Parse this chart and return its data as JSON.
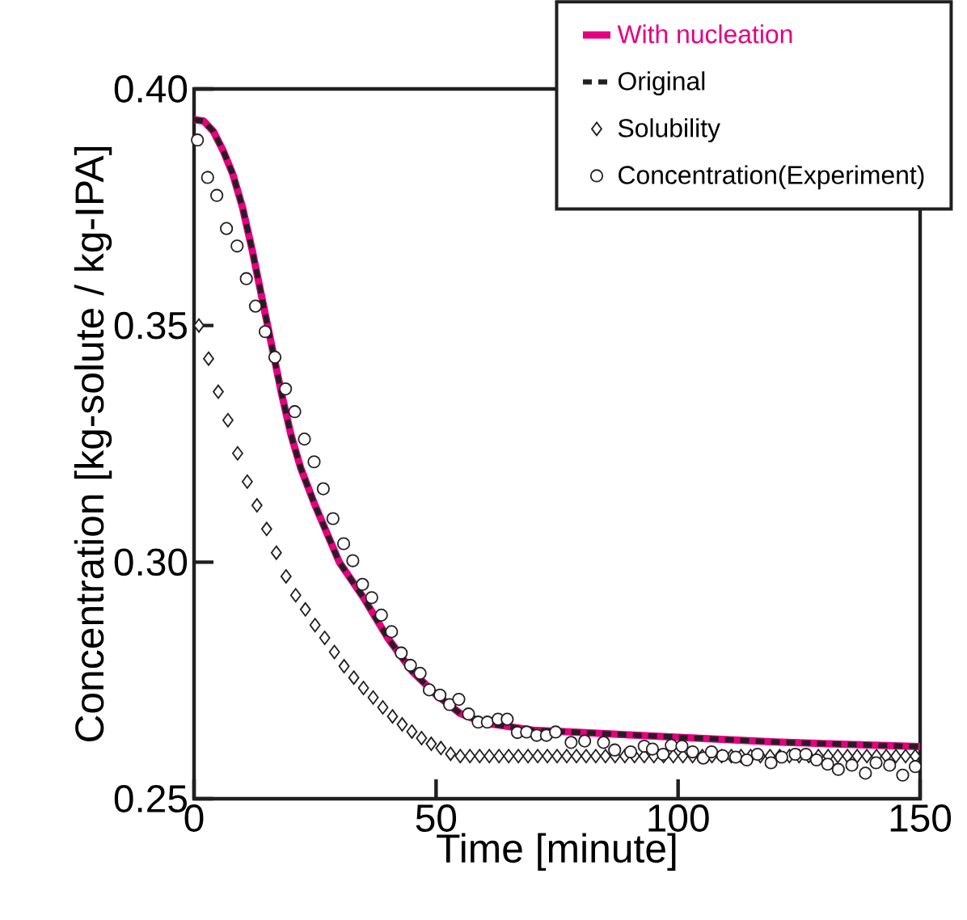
{
  "chart_data": {
    "type": "line",
    "xlabel": "Time [minute]",
    "ylabel": "Concentration [kg-solute / kg-IPA]",
    "xlim": [
      0,
      150
    ],
    "ylim": [
      0.25,
      0.4
    ],
    "xticks": [
      0,
      50,
      100,
      150
    ],
    "yticks": [
      0.25,
      {
        "value": 0.3,
        "label": "0.30"
      },
      0.35,
      {
        "value": 0.4,
        "label": "0.40"
      }
    ],
    "grid": false,
    "legend": "top right",
    "series": [
      {
        "name": "With nucleation",
        "color": "#e4007f",
        "line_style": "solid",
        "marker": "none",
        "x": [
          0,
          2,
          4,
          6,
          8,
          10,
          12,
          14,
          16,
          18,
          20,
          22,
          25,
          30,
          35,
          40,
          45,
          50,
          55,
          60,
          70,
          80,
          100,
          120,
          150
        ],
        "values": [
          0.3935,
          0.3932,
          0.391,
          0.387,
          0.382,
          0.375,
          0.366,
          0.356,
          0.346,
          0.336,
          0.327,
          0.32,
          0.312,
          0.3,
          0.2925,
          0.284,
          0.277,
          0.272,
          0.268,
          0.266,
          0.2645,
          0.264,
          0.263,
          0.262,
          0.261
        ]
      },
      {
        "name": "Original",
        "color": "#231f20",
        "line_style": "dashed",
        "marker": "none",
        "x": [
          0,
          2,
          4,
          6,
          8,
          10,
          12,
          14,
          16,
          18,
          20,
          22,
          25,
          30,
          35,
          40,
          45,
          50,
          55,
          60,
          70,
          80,
          100,
          120,
          150
        ],
        "values": [
          0.3935,
          0.3932,
          0.391,
          0.387,
          0.382,
          0.375,
          0.366,
          0.356,
          0.346,
          0.336,
          0.327,
          0.32,
          0.312,
          0.3,
          0.2925,
          0.284,
          0.277,
          0.272,
          0.268,
          0.266,
          0.2645,
          0.264,
          0.263,
          0.262,
          0.261
        ]
      },
      {
        "name": "Solubility",
        "type": "scatter",
        "color": "#231f20",
        "marker": "diamond",
        "x": [
          1,
          3,
          5,
          7,
          9,
          11,
          13,
          15,
          17,
          19,
          21,
          23,
          25,
          27,
          29,
          31,
          33,
          35,
          37,
          39,
          41,
          43,
          45,
          47,
          49,
          51,
          53,
          55,
          57,
          59,
          61,
          63,
          65,
          67,
          69,
          71,
          73,
          75,
          77,
          79,
          81,
          83,
          85,
          87,
          89,
          91,
          93,
          95,
          97,
          99,
          101,
          103,
          105,
          107,
          109,
          111,
          113,
          115,
          117,
          119,
          121,
          123,
          125,
          127,
          129,
          131,
          133,
          135,
          137,
          139,
          141,
          143,
          145,
          147,
          149
        ],
        "values": [
          0.35,
          0.343,
          0.336,
          0.33,
          0.323,
          0.317,
          0.312,
          0.307,
          0.302,
          0.297,
          0.293,
          0.29,
          0.2867,
          0.284,
          0.281,
          0.278,
          0.2756,
          0.2734,
          0.2714,
          0.2693,
          0.2674,
          0.2657,
          0.2642,
          0.2628,
          0.2616,
          0.2607,
          0.2595,
          0.259,
          0.259,
          0.259,
          0.259,
          0.259,
          0.259,
          0.259,
          0.259,
          0.259,
          0.259,
          0.259,
          0.259,
          0.259,
          0.259,
          0.259,
          0.259,
          0.259,
          0.259,
          0.259,
          0.259,
          0.259,
          0.259,
          0.259,
          0.259,
          0.259,
          0.259,
          0.259,
          0.259,
          0.259,
          0.259,
          0.259,
          0.259,
          0.259,
          0.259,
          0.259,
          0.259,
          0.259,
          0.259,
          0.259,
          0.259,
          0.259,
          0.259,
          0.259,
          0.259,
          0.259,
          0.259,
          0.259,
          0.259
        ]
      },
      {
        "name": "Concentration(Experiment)",
        "type": "scatter",
        "color": "#231f20",
        "marker": "circle",
        "x": [
          0.7,
          2.8,
          4.7,
          6.7,
          8.9,
          10.8,
          12.7,
          14.7,
          16.7,
          18.9,
          20.8,
          22.8,
          24.8,
          26.7,
          28.7,
          30.9,
          32.8,
          34.8,
          36.7,
          38.7,
          40.8,
          42.8,
          44.7,
          46.7,
          48.6,
          50.8,
          52.8,
          54.7,
          56.7,
          58.7,
          60.6,
          62.8,
          64.7,
          66.8,
          68.7,
          70.8,
          72.8,
          74.7,
          77.9,
          80.7,
          84.6,
          86.9,
          90.2,
          93.0,
          94.7,
          96.9,
          98.6,
          100.8,
          103.0,
          105.2,
          106.9,
          109.2,
          111.9,
          114.2,
          116.4,
          119.2,
          121.4,
          124.2,
          126.4,
          128.6,
          130.9,
          133.1,
          135.9,
          138.7,
          140.9,
          143.7,
          146.4,
          149.0
        ],
        "values": [
          0.3892,
          0.3813,
          0.3775,
          0.3705,
          0.3668,
          0.3599,
          0.3541,
          0.3487,
          0.3433,
          0.3366,
          0.3318,
          0.326,
          0.3212,
          0.3155,
          0.3092,
          0.3039,
          0.3003,
          0.2953,
          0.2925,
          0.2888,
          0.2853,
          0.2808,
          0.2782,
          0.2765,
          0.273,
          0.2719,
          0.2699,
          0.271,
          0.2679,
          0.2662,
          0.2662,
          0.2668,
          0.2668,
          0.264,
          0.2641,
          0.2634,
          0.2634,
          0.2641,
          0.2619,
          0.2622,
          0.2619,
          0.2603,
          0.2599,
          0.2611,
          0.2605,
          0.2594,
          0.2613,
          0.2611,
          0.2599,
          0.2586,
          0.2599,
          0.2591,
          0.2588,
          0.2582,
          0.2594,
          0.2576,
          0.2588,
          0.2594,
          0.2594,
          0.2582,
          0.2573,
          0.2562,
          0.2571,
          0.2554,
          0.2576,
          0.2571,
          0.255,
          0.2568
        ]
      }
    ]
  }
}
